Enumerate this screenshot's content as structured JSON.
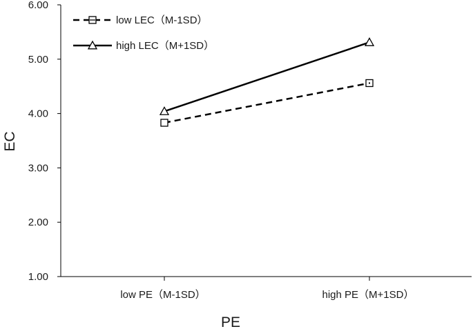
{
  "chart_data": {
    "type": "line",
    "categories": [
      "low PE（M-1SD）",
      "high PE（M+1SD）"
    ],
    "series": [
      {
        "name": "low LEC（M-1SD）",
        "values": [
          3.83,
          4.56
        ],
        "line_style": "dashed",
        "marker": "square",
        "color": "#000000"
      },
      {
        "name": "high LEC（M+1SD）",
        "values": [
          4.04,
          5.31
        ],
        "line_style": "solid",
        "marker": "triangle",
        "color": "#000000"
      }
    ],
    "title": "",
    "xlabel": "PE",
    "ylabel": "EC",
    "ylim": [
      1.0,
      6.0
    ],
    "yticks": [
      "1.00",
      "2.00",
      "3.00",
      "4.00",
      "5.00",
      "6.00"
    ],
    "grid": false,
    "legend_position": "top-left"
  }
}
